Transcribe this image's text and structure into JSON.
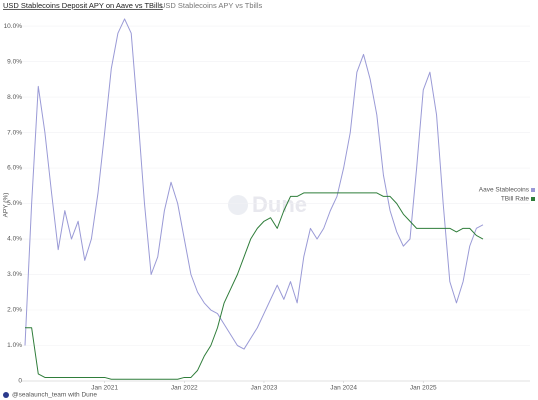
{
  "chart_data": {
    "type": "line",
    "title": "USD Stablecoins Deposit APY on Aave vs TBills",
    "subtitle": "USD Stablecoins APY vs Tbills",
    "y_label": "APY (%)",
    "watermark": "Dune",
    "footer": "@sealaunch_team with Dune",
    "legend": "right",
    "grid": true,
    "x": [
      "2020-01",
      "2020-02",
      "2020-03",
      "2020-04",
      "2020-05",
      "2020-06",
      "2020-07",
      "2020-08",
      "2020-09",
      "2020-10",
      "2020-11",
      "2020-12",
      "2021-01",
      "2021-02",
      "2021-03",
      "2021-04",
      "2021-05",
      "2021-06",
      "2021-07",
      "2021-08",
      "2021-09",
      "2021-10",
      "2021-11",
      "2021-12",
      "2022-01",
      "2022-02",
      "2022-03",
      "2022-04",
      "2022-05",
      "2022-06",
      "2022-07",
      "2022-08",
      "2022-09",
      "2022-10",
      "2022-11",
      "2022-12",
      "2023-01",
      "2023-02",
      "2023-03",
      "2023-04",
      "2023-05",
      "2023-06",
      "2023-07",
      "2023-08",
      "2023-09",
      "2023-10",
      "2023-11",
      "2023-12",
      "2024-01",
      "2024-02",
      "2024-03",
      "2024-04",
      "2024-05",
      "2024-06",
      "2024-07",
      "2024-08",
      "2024-09",
      "2024-10",
      "2024-11",
      "2024-12",
      "2025-01",
      "2025-02",
      "2025-03",
      "2025-04",
      "2025-05",
      "2025-06",
      "2025-07",
      "2025-08",
      "2025-09",
      "2025-10"
    ],
    "series": [
      {
        "name": "Aave Stablecoins",
        "color": "#9a9ad6",
        "values": [
          1.0,
          5.0,
          8.3,
          7.0,
          5.3,
          3.7,
          4.8,
          4.0,
          4.5,
          3.4,
          4.0,
          5.3,
          7.0,
          8.8,
          9.8,
          10.2,
          9.8,
          7.5,
          5.0,
          3.0,
          3.5,
          4.8,
          5.6,
          5.0,
          4.0,
          3.0,
          2.5,
          2.2,
          2.0,
          1.9,
          1.6,
          1.3,
          1.0,
          0.9,
          1.2,
          1.5,
          1.9,
          2.3,
          2.7,
          2.3,
          2.8,
          2.2,
          3.5,
          4.3,
          4.0,
          4.3,
          4.8,
          5.2,
          6.0,
          7.0,
          8.7,
          9.2,
          8.5,
          7.5,
          5.8,
          4.8,
          4.2,
          3.8,
          4.0,
          6.0,
          8.2,
          8.7,
          7.5,
          5.0,
          2.8,
          2.2,
          2.8,
          3.8,
          4.3,
          4.4
        ]
      },
      {
        "name": "TBill Rate",
        "color": "#2f7d3a",
        "values": [
          1.5,
          1.5,
          0.2,
          0.1,
          0.1,
          0.1,
          0.1,
          0.1,
          0.1,
          0.1,
          0.1,
          0.1,
          0.1,
          0.05,
          0.05,
          0.05,
          0.05,
          0.05,
          0.05,
          0.05,
          0.05,
          0.05,
          0.05,
          0.05,
          0.1,
          0.1,
          0.3,
          0.7,
          1.0,
          1.5,
          2.2,
          2.6,
          3.0,
          3.5,
          4.0,
          4.3,
          4.5,
          4.6,
          4.3,
          4.8,
          5.2,
          5.2,
          5.3,
          5.3,
          5.3,
          5.3,
          5.3,
          5.3,
          5.3,
          5.3,
          5.3,
          5.3,
          5.3,
          5.3,
          5.2,
          5.2,
          5.0,
          4.7,
          4.5,
          4.3,
          4.3,
          4.3,
          4.3,
          4.3,
          4.3,
          4.2,
          4.3,
          4.3,
          4.1,
          4.0
        ]
      }
    ],
    "xlim": [
      "2020-01",
      "2025-10"
    ],
    "xticks": [
      {
        "value": "2021-01",
        "label": "Jan 2021"
      },
      {
        "value": "2022-01",
        "label": "Jan 2022"
      },
      {
        "value": "2023-01",
        "label": "Jan 2023"
      },
      {
        "value": "2024-01",
        "label": "Jan 2024"
      },
      {
        "value": "2025-01",
        "label": "Jan 2025"
      }
    ],
    "ylim": [
      0,
      10.3
    ],
    "yticks": [
      0,
      {
        "value": 1,
        "label": "1.0%"
      },
      {
        "value": 2,
        "label": "2.0%"
      },
      {
        "value": 3,
        "label": "3.0%"
      },
      {
        "value": 4,
        "label": "4.0%"
      },
      {
        "value": 5,
        "label": "5.0%"
      },
      {
        "value": 6,
        "label": "6.0%"
      },
      {
        "value": 7,
        "label": "7.0%"
      },
      {
        "value": 8,
        "label": "8.0%"
      },
      {
        "value": 9,
        "label": "9.0%"
      },
      {
        "value": 10,
        "label": "10.0%"
      }
    ]
  }
}
